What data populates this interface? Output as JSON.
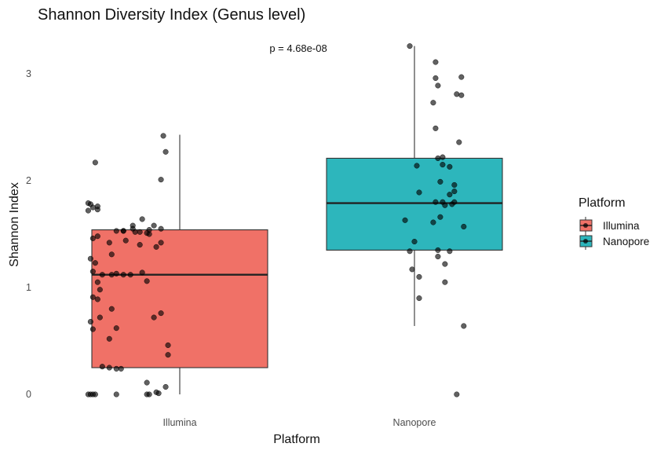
{
  "chart_data": {
    "type": "box",
    "title": "Shannon Diversity Index (Genus level)",
    "xlabel": "Platform",
    "ylabel": "Shannon Index",
    "categories": [
      "Illumina",
      "Nanopore"
    ],
    "y_ticks": [
      "0",
      "1",
      "2",
      "3"
    ],
    "ylim": [
      -0.12,
      3.3
    ],
    "grid": false,
    "annotation": "p = 4.68e-08",
    "legend": {
      "title": "Platform",
      "placement": "right",
      "entries": [
        "Illumina",
        "Nanopore"
      ]
    },
    "colors": {
      "Illumina": "#F07167",
      "Nanopore": "#2DB6BC"
    },
    "boxes": [
      {
        "name": "Illumina",
        "whisker_low": 0.0,
        "q1": 0.25,
        "median": 1.12,
        "q3": 1.54,
        "whisker_high": 2.43
      },
      {
        "name": "Nanopore",
        "whisker_low": 0.64,
        "q1": 1.35,
        "median": 1.79,
        "q3": 2.21,
        "whisker_high": 3.26
      }
    ],
    "points": {
      "Illumina": [
        [
          0.93,
          2.42
        ],
        [
          0.94,
          2.27
        ],
        [
          0.92,
          2.01
        ],
        [
          0.64,
          2.17
        ],
        [
          0.62,
          1.78
        ],
        [
          0.63,
          1.75
        ],
        [
          0.65,
          1.76
        ],
        [
          0.65,
          1.73
        ],
        [
          0.61,
          1.79
        ],
        [
          0.61,
          1.72
        ],
        [
          0.84,
          1.64
        ],
        [
          0.8,
          1.58
        ],
        [
          0.89,
          1.58
        ],
        [
          0.8,
          1.55
        ],
        [
          0.73,
          1.53
        ],
        [
          0.76,
          1.53
        ],
        [
          0.87,
          1.54
        ],
        [
          0.92,
          1.55
        ],
        [
          0.76,
          1.53
        ],
        [
          0.81,
          1.52
        ],
        [
          0.83,
          1.52
        ],
        [
          0.86,
          1.51
        ],
        [
          0.87,
          1.5
        ],
        [
          0.65,
          1.48
        ],
        [
          0.63,
          1.46
        ],
        [
          0.77,
          1.44
        ],
        [
          0.7,
          1.42
        ],
        [
          0.83,
          1.4
        ],
        [
          0.9,
          1.38
        ],
        [
          0.92,
          1.42
        ],
        [
          0.71,
          1.31
        ],
        [
          0.62,
          1.27
        ],
        [
          0.64,
          1.23
        ],
        [
          0.63,
          1.15
        ],
        [
          0.67,
          1.12
        ],
        [
          0.71,
          1.12
        ],
        [
          0.73,
          1.13
        ],
        [
          0.76,
          1.12
        ],
        [
          0.79,
          1.12
        ],
        [
          0.84,
          1.14
        ],
        [
          0.86,
          1.06
        ],
        [
          0.65,
          1.05
        ],
        [
          0.66,
          0.98
        ],
        [
          0.63,
          0.91
        ],
        [
          0.65,
          0.89
        ],
        [
          0.71,
          0.8
        ],
        [
          0.66,
          0.72
        ],
        [
          0.62,
          0.68
        ],
        [
          0.63,
          0.61
        ],
        [
          0.73,
          0.62
        ],
        [
          0.92,
          0.76
        ],
        [
          0.89,
          0.72
        ],
        [
          0.7,
          0.52
        ],
        [
          0.95,
          0.46
        ],
        [
          0.95,
          0.37
        ],
        [
          0.67,
          0.26
        ],
        [
          0.7,
          0.25
        ],
        [
          0.73,
          0.24
        ],
        [
          0.75,
          0.24
        ],
        [
          0.86,
          0.11
        ],
        [
          0.94,
          0.07
        ],
        [
          0.91,
          0.01
        ],
        [
          0.9,
          0.02
        ],
        [
          0.61,
          0.0
        ],
        [
          0.62,
          0.0
        ],
        [
          0.63,
          0.0
        ],
        [
          0.64,
          0.0
        ],
        [
          0.73,
          0.0
        ],
        [
          0.86,
          0.0
        ],
        [
          0.87,
          0.0
        ]
      ],
      "Nanopore": [
        [
          1.98,
          3.26
        ],
        [
          2.09,
          3.11
        ],
        [
          2.09,
          2.96
        ],
        [
          2.2,
          2.97
        ],
        [
          2.1,
          2.89
        ],
        [
          2.18,
          2.81
        ],
        [
          2.2,
          2.8
        ],
        [
          2.08,
          2.73
        ],
        [
          2.09,
          2.49
        ],
        [
          2.19,
          2.36
        ],
        [
          2.12,
          2.22
        ],
        [
          2.12,
          2.15
        ],
        [
          2.15,
          2.13
        ],
        [
          2.01,
          2.14
        ],
        [
          2.1,
          2.21
        ],
        [
          2.11,
          1.99
        ],
        [
          2.17,
          1.96
        ],
        [
          2.02,
          1.89
        ],
        [
          2.15,
          1.87
        ],
        [
          2.17,
          1.9
        ],
        [
          2.17,
          1.8
        ],
        [
          2.13,
          1.77
        ],
        [
          2.16,
          1.78
        ],
        [
          2.12,
          1.8
        ],
        [
          2.09,
          1.8
        ],
        [
          2.11,
          1.66
        ],
        [
          2.08,
          1.61
        ],
        [
          1.96,
          1.63
        ],
        [
          2.0,
          1.43
        ],
        [
          2.21,
          1.57
        ],
        [
          1.98,
          1.34
        ],
        [
          2.1,
          1.35
        ],
        [
          2.15,
          1.34
        ],
        [
          2.1,
          1.29
        ],
        [
          2.13,
          1.22
        ],
        [
          1.99,
          1.17
        ],
        [
          2.02,
          1.1
        ],
        [
          2.13,
          1.05
        ],
        [
          2.02,
          0.9
        ],
        [
          2.21,
          0.64
        ],
        [
          2.18,
          0.0
        ]
      ]
    }
  }
}
